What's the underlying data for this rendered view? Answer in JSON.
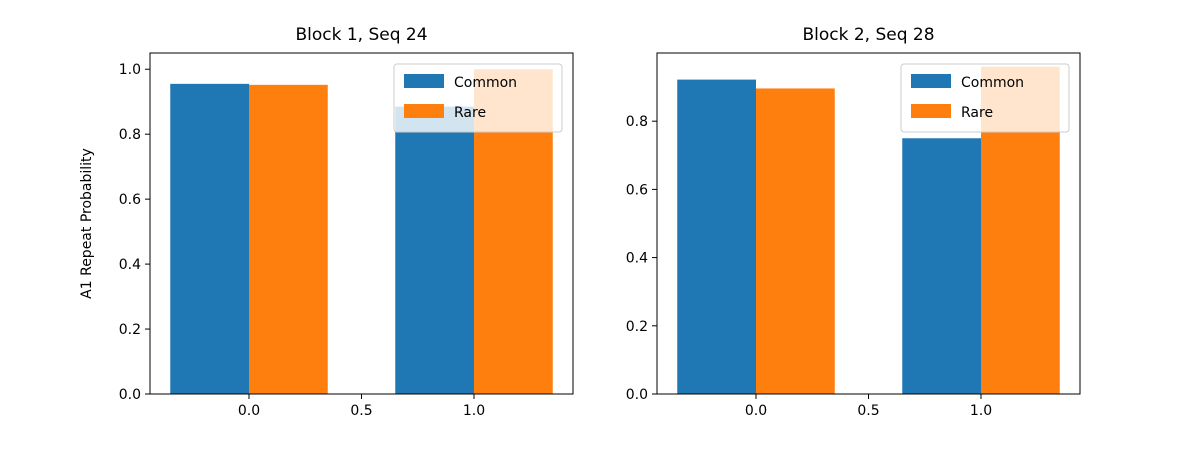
{
  "chart_data": [
    {
      "type": "bar",
      "title": "Block 1, Seq 24",
      "xlabel": "",
      "ylabel": "A1 Repeat Probability",
      "x": [
        0,
        1
      ],
      "bar_width": 0.35,
      "series": [
        {
          "name": "Common",
          "values": [
            0.955,
            0.885
          ],
          "color": "#1f77b4"
        },
        {
          "name": "Rare",
          "values": [
            0.952,
            1.0
          ],
          "color": "#ff7f0e"
        }
      ],
      "xlim": [
        -0.44,
        1.44
      ],
      "ylim": [
        0,
        1.05
      ],
      "xticks": [
        "0.0",
        "0.5",
        "1.0"
      ],
      "yticks": [
        "0.0",
        "0.2",
        "0.4",
        "0.6",
        "0.8",
        "1.0"
      ],
      "legend": "top-right",
      "grid": false
    },
    {
      "type": "bar",
      "title": "Block 2, Seq 28",
      "xlabel": "",
      "ylabel": "",
      "x": [
        0,
        1
      ],
      "bar_width": 0.35,
      "series": [
        {
          "name": "Common",
          "values": [
            0.922,
            0.75
          ],
          "color": "#1f77b4"
        },
        {
          "name": "Rare",
          "values": [
            0.896,
            0.96
          ],
          "color": "#ff7f0e"
        }
      ],
      "xlim": [
        -0.44,
        1.44
      ],
      "ylim": [
        0,
        1.0
      ],
      "xticks": [
        "0.0",
        "0.5",
        "1.0"
      ],
      "yticks": [
        "0.0",
        "0.2",
        "0.4",
        "0.6",
        "0.8"
      ],
      "legend": "top-right",
      "grid": false
    }
  ]
}
